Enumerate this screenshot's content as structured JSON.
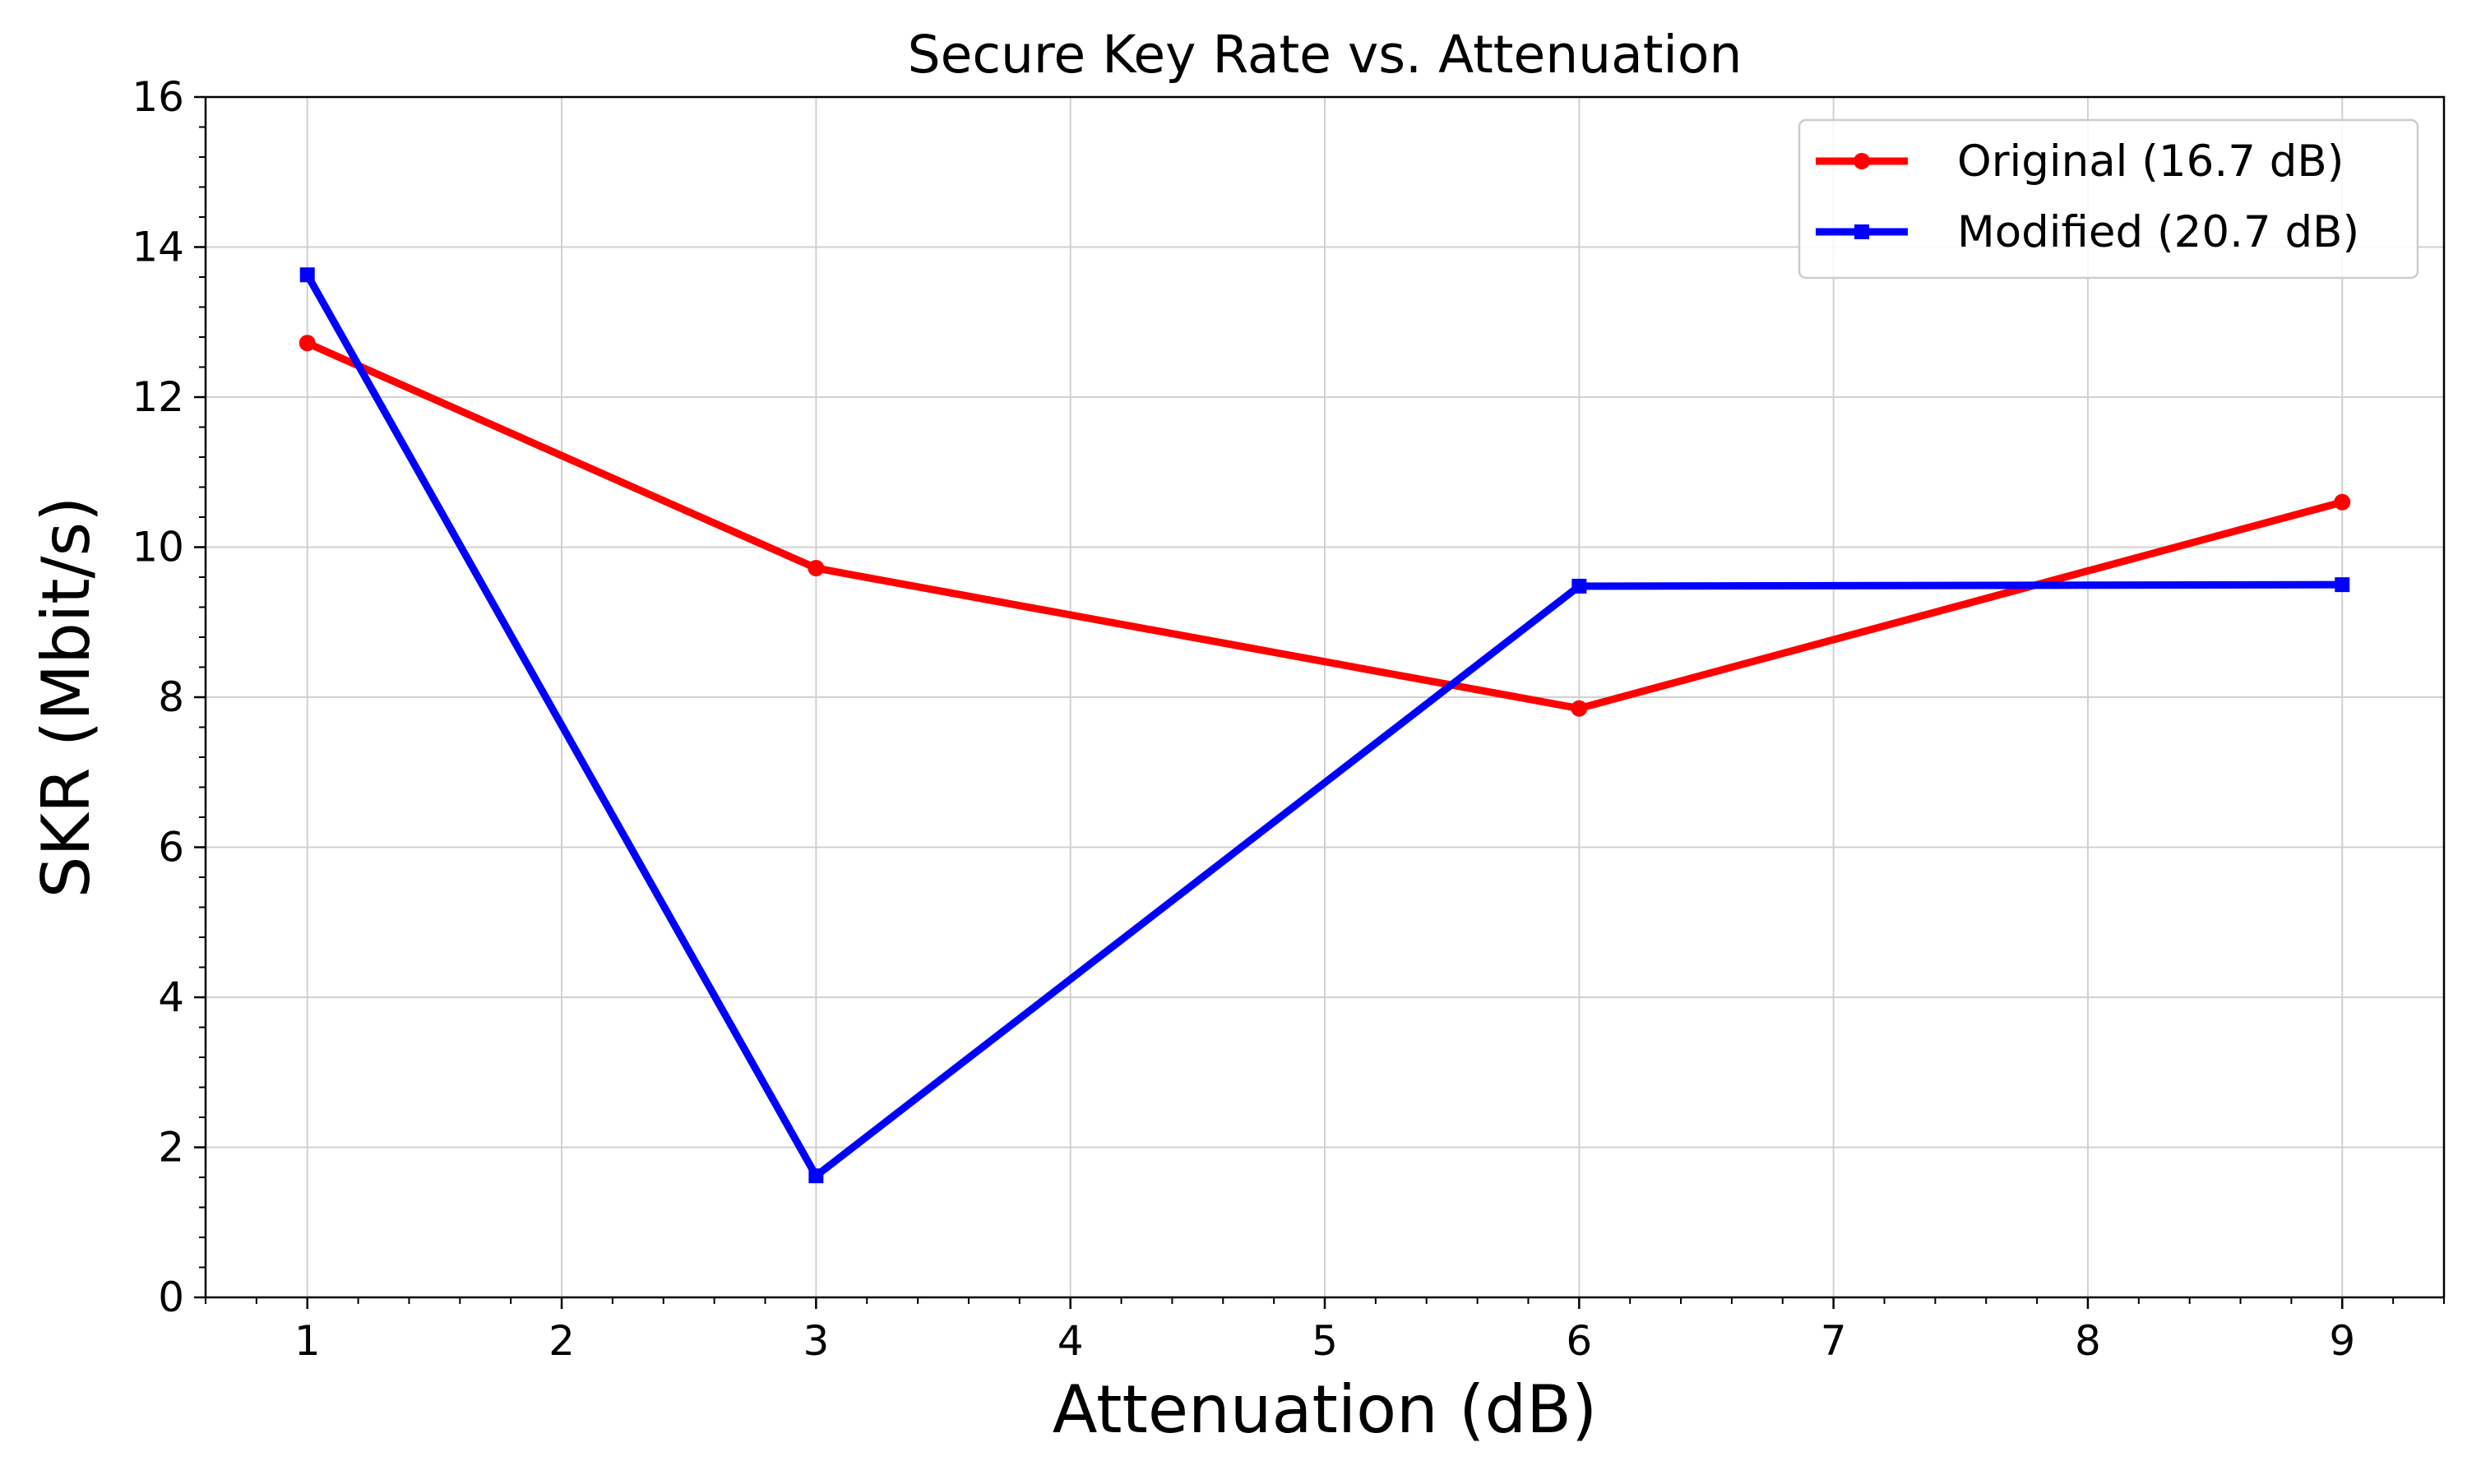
{
  "chart_data": {
    "type": "line",
    "title": "Secure Key Rate vs. Attenuation",
    "xlabel": "Attenuation (dB)",
    "ylabel": "SKR (Mbit/s)",
    "xlim": [
      0.6,
      9.4
    ],
    "ylim": [
      0,
      16
    ],
    "xticks": [
      1,
      2,
      3,
      4,
      5,
      6,
      7,
      8,
      9
    ],
    "yticks": [
      0,
      2,
      4,
      6,
      8,
      10,
      12,
      14,
      16
    ],
    "grid": true,
    "legend_position": "top-right",
    "series": [
      {
        "name": "Original (16.7 dB)",
        "color": "#ff0000",
        "marker": "circle",
        "x": [
          1,
          3,
          6,
          9
        ],
        "y": [
          12.72,
          9.72,
          7.85,
          10.6
        ]
      },
      {
        "name": "Modified (20.7 dB)",
        "color": "#0000ff",
        "marker": "square",
        "x": [
          1,
          3,
          6,
          9
        ],
        "y": [
          13.63,
          1.62,
          9.48,
          9.5
        ]
      }
    ]
  }
}
